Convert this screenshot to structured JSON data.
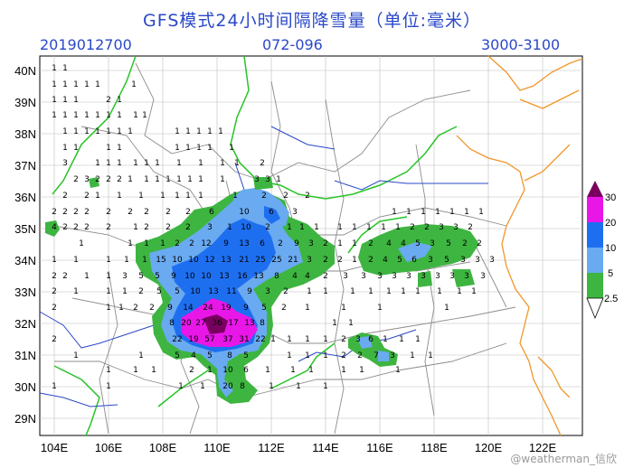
{
  "title": "GFS模式24小时间隔降雪量（单位:毫米）",
  "header": {
    "run_time": "2019012700",
    "forecast_hours": "072-096",
    "code": "3000-3100"
  },
  "lat_labels": [
    "40N",
    "39N",
    "38N",
    "37N",
    "36N",
    "35N",
    "34N",
    "33N",
    "32N",
    "31N",
    "30N",
    "29N"
  ],
  "lon_labels": [
    "104E",
    "106E",
    "108E",
    "110E",
    "112E",
    "114E",
    "116E",
    "118E",
    "120E",
    "122E"
  ],
  "legend": {
    "levels": [
      "2.5",
      "5",
      "10",
      "20",
      "30"
    ],
    "colors": [
      "#3db540",
      "#6aaaf0",
      "#1e6ff0",
      "#e817e8",
      "#7a0060"
    ]
  },
  "watermark": "@weatherman_信欣"
}
